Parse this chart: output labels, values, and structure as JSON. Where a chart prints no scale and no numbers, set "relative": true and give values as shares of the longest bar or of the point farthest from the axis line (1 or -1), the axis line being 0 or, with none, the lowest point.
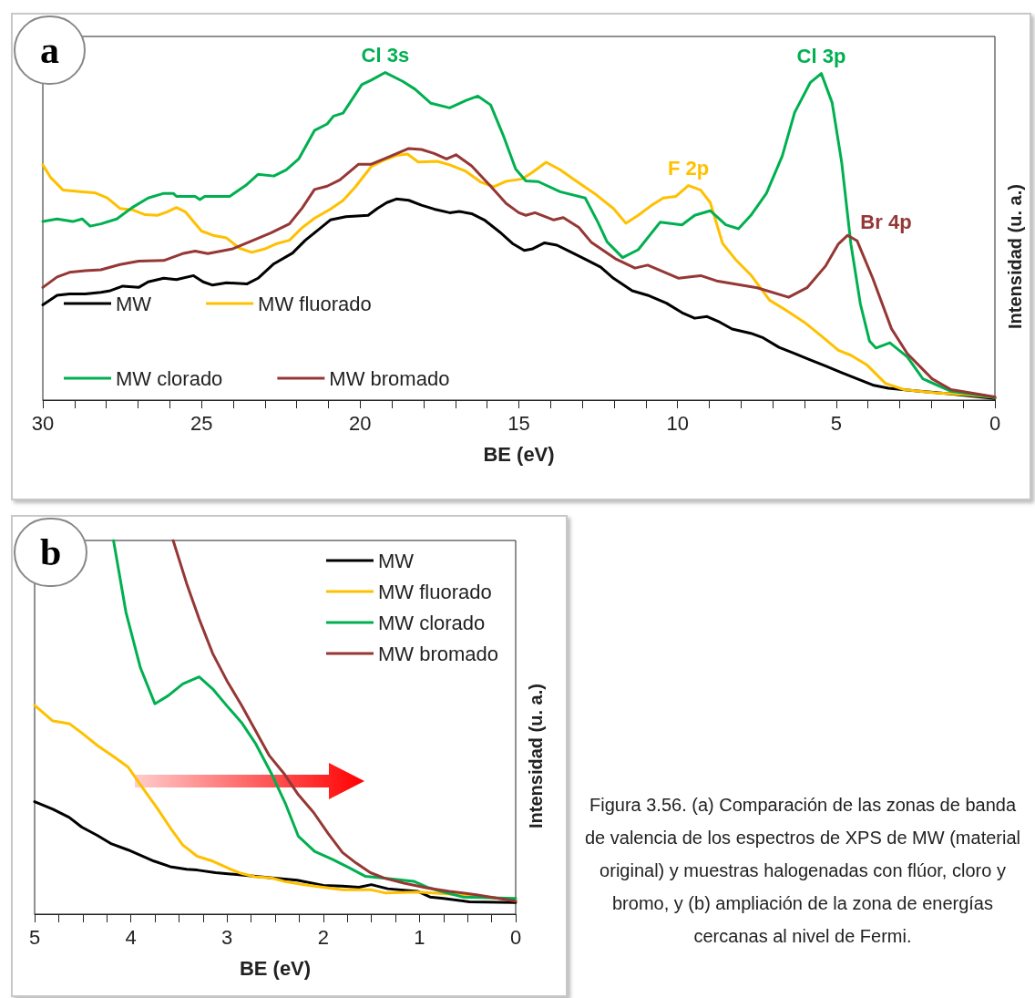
{
  "chart_data": [
    {
      "type": "line",
      "title": "a",
      "xlabel": "BE (eV)",
      "ylabel": "Intensidad (u. a.)",
      "relative": true,
      "legend": "bottom left",
      "grid": false,
      "marker": "none",
      "line_style": "solid",
      "xlim": [
        30,
        0
      ],
      "xticks": [
        30,
        {
          "value": 29,
          "label": null
        },
        {
          "value": 28,
          "label": null
        },
        {
          "value": 27,
          "label": null
        },
        {
          "value": 26,
          "label": null
        },
        25,
        {
          "value": 24,
          "label": null
        },
        {
          "value": 23,
          "label": null
        },
        {
          "value": 22,
          "label": null
        },
        {
          "value": 21,
          "label": null
        },
        20,
        {
          "value": 19,
          "label": null
        },
        {
          "value": 18,
          "label": null
        },
        {
          "value": 17,
          "label": null
        },
        {
          "value": 16,
          "label": null
        },
        15,
        {
          "value": 14,
          "label": null
        },
        {
          "value": 13,
          "label": null
        },
        {
          "value": 12,
          "label": null
        },
        {
          "value": 11,
          "label": null
        },
        10,
        {
          "value": 9,
          "label": null
        },
        {
          "value": 8,
          "label": null
        },
        {
          "value": 7,
          "label": null
        },
        {
          "value": 6,
          "label": null
        },
        5,
        {
          "value": 4,
          "label": null
        },
        {
          "value": 3,
          "label": null
        },
        {
          "value": 2,
          "label": null
        },
        {
          "value": 1,
          "label": null
        },
        0
      ],
      "annotations": [
        {
          "text": "Cl 3s",
          "x": 19.21,
          "y": 1
        },
        {
          "text": "Cl 3p",
          "x": 5.47,
          "y": 0.997
        },
        {
          "text": "F 2p",
          "x": 9.66,
          "y": 0.655
        },
        {
          "text": "Br 4p",
          "x": 4.64,
          "y": 0.503
        }
      ],
      "series": [
        {
          "name": "MW",
          "color": "#000000",
          "x": [
            30,
            29.55,
            29.16,
            28.66,
            28.17,
            27.87,
            27.48,
            26.98,
            26.68,
            26.19,
            25.79,
            25.25,
            24.95,
            24.65,
            24.21,
            23.56,
            23.22,
            22.72,
            22.13,
            21.73,
            21.24,
            20.94,
            20.45,
            19.75,
            19.46,
            19.16,
            18.86,
            18.47,
            18.07,
            17.67,
            17.18,
            16.88,
            16.49,
            16.09,
            15.59,
            15.2,
            14.83,
            14.59,
            14.19,
            13.8,
            13.4,
            12.91,
            12.42,
            12.02,
            11.43,
            10.94,
            10.35,
            9.86,
            9.46,
            9.07,
            8.67,
            8.28,
            7.69,
            7.3,
            6.8,
            6.31,
            5.82,
            5.33,
            4.83,
            4.34,
            3.85,
            3.35,
            2.37,
            1.38,
            0
          ],
          "values": [
            0.291,
            0.32,
            0.324,
            0.324,
            0.329,
            0.334,
            0.348,
            0.344,
            0.361,
            0.372,
            0.368,
            0.38,
            0.361,
            0.351,
            0.358,
            0.355,
            0.372,
            0.416,
            0.449,
            0.488,
            0.526,
            0.55,
            0.56,
            0.564,
            0.585,
            0.603,
            0.614,
            0.61,
            0.595,
            0.583,
            0.572,
            0.576,
            0.569,
            0.55,
            0.512,
            0.478,
            0.457,
            0.461,
            0.48,
            0.473,
            0.454,
            0.43,
            0.406,
            0.372,
            0.334,
            0.32,
            0.296,
            0.267,
            0.25,
            0.255,
            0.238,
            0.217,
            0.204,
            0.19,
            0.161,
            0.142,
            0.123,
            0.104,
            0.084,
            0.065,
            0.046,
            0.036,
            0.027,
            0.019,
            0.005
          ]
        },
        {
          "name": "MW fluorado",
          "color": "#ffc000",
          "x": [
            30,
            29.75,
            29.36,
            28.76,
            28.37,
            27.97,
            27.57,
            27.18,
            26.78,
            26.39,
            26.09,
            25.79,
            25.5,
            25,
            24.6,
            24.21,
            23.81,
            23.42,
            23.02,
            22.62,
            22.23,
            21.83,
            21.44,
            20.94,
            20.54,
            20.15,
            19.65,
            19.26,
            18.86,
            18.51,
            18.17,
            17.57,
            17.18,
            16.68,
            16.19,
            15.79,
            15.4,
            14.9,
            14.59,
            14.14,
            13.7,
            13.21,
            12.62,
            12.02,
            11.63,
            11.24,
            10.84,
            10.45,
            10.05,
            9.66,
            9.27,
            8.97,
            8.58,
            8.18,
            7.69,
            7.1,
            6.61,
            6.01,
            5.52,
            4.93,
            4.54,
            4.04,
            3.45,
            2.86,
            1.88,
            0.89,
            0
          ],
          "values": [
            0.718,
            0.679,
            0.641,
            0.636,
            0.633,
            0.617,
            0.585,
            0.581,
            0.566,
            0.564,
            0.574,
            0.588,
            0.574,
            0.516,
            0.502,
            0.495,
            0.464,
            0.451,
            0.461,
            0.478,
            0.488,
            0.526,
            0.555,
            0.583,
            0.609,
            0.651,
            0.713,
            0.732,
            0.747,
            0.751,
            0.727,
            0.729,
            0.718,
            0.699,
            0.665,
            0.651,
            0.668,
            0.675,
            0.694,
            0.726,
            0.703,
            0.67,
            0.631,
            0.585,
            0.54,
            0.564,
            0.593,
            0.617,
            0.622,
            0.655,
            0.641,
            0.603,
            0.478,
            0.43,
            0.382,
            0.305,
            0.276,
            0.238,
            0.2,
            0.152,
            0.137,
            0.108,
            0.051,
            0.032,
            0.022,
            0.017,
            0.008
          ]
        },
        {
          "name": "MW clorado",
          "color": "#00b050",
          "x": [
            30,
            29.55,
            29.06,
            28.76,
            28.51,
            28.17,
            27.67,
            27.18,
            26.68,
            26.19,
            25.89,
            25.79,
            25.2,
            25.05,
            24.9,
            24.11,
            23.61,
            23.22,
            22.72,
            22.33,
            21.93,
            21.44,
            21.04,
            20.84,
            20.54,
            19.95,
            19.65,
            19.21,
            18.66,
            18.27,
            17.77,
            17.18,
            16.68,
            16.29,
            15.89,
            15.5,
            15.1,
            14.78,
            14.39,
            13.7,
            12.91,
            12.52,
            12.22,
            11.73,
            11.24,
            10.55,
            9.86,
            9.46,
            8.97,
            8.48,
            8.08,
            7.69,
            7.2,
            6.7,
            6.31,
            5.82,
            5.47,
            5.13,
            4.83,
            4.54,
            4.24,
            3.95,
            3.75,
            3.31,
            2.76,
            2.27,
            1.38,
            0
          ],
          "values": [
            0.545,
            0.553,
            0.545,
            0.553,
            0.531,
            0.538,
            0.553,
            0.588,
            0.617,
            0.631,
            0.631,
            0.622,
            0.622,
            0.612,
            0.622,
            0.622,
            0.655,
            0.689,
            0.684,
            0.703,
            0.737,
            0.823,
            0.843,
            0.867,
            0.876,
            0.963,
            0.977,
            1,
            0.973,
            0.949,
            0.906,
            0.892,
            0.914,
            0.928,
            0.901,
            0.81,
            0.705,
            0.669,
            0.667,
            0.636,
            0.617,
            0.545,
            0.483,
            0.435,
            0.459,
            0.543,
            0.535,
            0.564,
            0.578,
            0.535,
            0.523,
            0.564,
            0.631,
            0.745,
            0.878,
            0.969,
            0.997,
            0.908,
            0.727,
            0.478,
            0.294,
            0.18,
            0.159,
            0.175,
            0.132,
            0.065,
            0.027,
            0.008
          ]
        },
        {
          "name": "MW bromado",
          "color": "#953735",
          "x": [
            30,
            29.55,
            29.16,
            28.66,
            28.17,
            27.57,
            26.98,
            26.19,
            25.6,
            25.2,
            24.8,
            24.01,
            23.42,
            22.82,
            22.23,
            21.83,
            21.44,
            21.04,
            20.64,
            20.05,
            19.65,
            19.06,
            18.47,
            18.07,
            17.67,
            17.28,
            16.98,
            16.49,
            15.89,
            15.4,
            15,
            14.78,
            14.49,
            13.9,
            13.6,
            13.11,
            12.71,
            11.93,
            11.34,
            10.94,
            9.96,
            9.27,
            8.77,
            7.49,
            6.5,
            5.92,
            5.33,
            4.93,
            4.64,
            4.34,
            3.85,
            3.26,
            2.76,
            1.98,
            1.38,
            0
          ],
          "values": [
            0.344,
            0.376,
            0.39,
            0.395,
            0.398,
            0.414,
            0.424,
            0.426,
            0.447,
            0.455,
            0.447,
            0.462,
            0.486,
            0.51,
            0.538,
            0.586,
            0.643,
            0.653,
            0.672,
            0.72,
            0.72,
            0.744,
            0.768,
            0.765,
            0.753,
            0.736,
            0.749,
            0.715,
            0.653,
            0.6,
            0.572,
            0.564,
            0.572,
            0.55,
            0.557,
            0.527,
            0.481,
            0.43,
            0.403,
            0.412,
            0.372,
            0.38,
            0.364,
            0.343,
            0.314,
            0.343,
            0.41,
            0.477,
            0.503,
            0.486,
            0.372,
            0.218,
            0.142,
            0.065,
            0.032,
            0.01
          ]
        }
      ]
    },
    {
      "type": "line",
      "title": "b",
      "xlabel": "BE (eV)",
      "ylabel": "Intensidad (u. a.)",
      "relative": true,
      "legend": "top right",
      "grid": false,
      "marker": "none",
      "line_style": "solid",
      "xlim": [
        5,
        0
      ],
      "xticks": [
        5,
        {
          "value": 4.75,
          "label": null
        },
        {
          "value": 4.5,
          "label": null
        },
        {
          "value": 4.25,
          "label": null
        },
        4,
        {
          "value": 3.75,
          "label": null
        },
        {
          "value": 3.5,
          "label": null
        },
        {
          "value": 3.25,
          "label": null
        },
        3,
        {
          "value": 2.75,
          "label": null
        },
        {
          "value": 2.5,
          "label": null
        },
        {
          "value": 2.25,
          "label": null
        },
        2,
        {
          "value": 1.75,
          "label": null
        },
        {
          "value": 1.5,
          "label": null
        },
        {
          "value": 1.25,
          "label": null
        },
        1,
        {
          "value": 0.75,
          "label": null
        },
        {
          "value": 0.5,
          "label": null
        },
        {
          "value": 0.25,
          "label": null
        },
        0
      ],
      "annotations": [
        "Figura 3.56. (a) Comparación de las zonas de banda de valencia de los espectros de XPS de MW (material original) y muestras halogenadas con flúor, cloro y bromo, y (b) ampliación de la zona de energías cercanas al nivel de Fermi."
      ],
      "series": [
        {
          "name": "MW",
          "color": "#000000",
          "x": [
            5,
            4.81,
            4.64,
            4.51,
            4.35,
            4.2,
            4.03,
            3.76,
            3.59,
            3.42,
            3.31,
            3.12,
            2.85,
            2.58,
            2.27,
            2,
            1.8,
            1.63,
            1.5,
            1.33,
            1.02,
            0.89,
            0.75,
            0.48,
            0
          ],
          "values": [
            0.301,
            0.281,
            0.259,
            0.233,
            0.211,
            0.188,
            0.172,
            0.142,
            0.127,
            0.12,
            0.118,
            0.111,
            0.105,
            0.098,
            0.091,
            0.077,
            0.075,
            0.072,
            0.079,
            0.068,
            0.061,
            0.046,
            0.042,
            0.033,
            0.031
          ]
        },
        {
          "name": "MW fluorado",
          "color": "#ffc000",
          "x": [
            5,
            4.81,
            4.64,
            4.51,
            4.34,
            4.17,
            4.03,
            3.9,
            3.73,
            3.59,
            3.46,
            3.31,
            3.15,
            2.98,
            2.85,
            2.71,
            2.54,
            2.41,
            2.21,
            2,
            1.8,
            1.5,
            1.36,
            1.02,
            0.75,
            0.41,
            0
          ],
          "values": [
            0.559,
            0.517,
            0.51,
            0.485,
            0.45,
            0.42,
            0.394,
            0.346,
            0.285,
            0.231,
            0.185,
            0.155,
            0.142,
            0.122,
            0.109,
            0.1,
            0.097,
            0.088,
            0.079,
            0.072,
            0.065,
            0.065,
            0.057,
            0.059,
            0.055,
            0.049,
            0.037
          ]
        },
        {
          "name": "MW clorado",
          "color": "#00b050",
          "x": [
            4.18,
            4.05,
            3.9,
            3.75,
            3.61,
            3.46,
            3.29,
            3.15,
            3,
            2.85,
            2.7,
            2.54,
            2.39,
            2.26,
            2.09,
            1.9,
            1.73,
            1.56,
            1.39,
            1.06,
            0.92,
            0.75,
            0.55,
            0
          ],
          "values": [
            1,
            0.807,
            0.659,
            0.563,
            0.585,
            0.616,
            0.635,
            0.603,
            0.557,
            0.513,
            0.455,
            0.377,
            0.294,
            0.209,
            0.168,
            0.146,
            0.124,
            0.101,
            0.097,
            0.088,
            0.072,
            0.059,
            0.046,
            0.042
          ]
        },
        {
          "name": "MW bromado",
          "color": "#953735",
          "x": [
            3.56,
            3.42,
            3.29,
            3.15,
            3,
            2.85,
            2.71,
            2.56,
            2.41,
            2.26,
            2.1,
            1.95,
            1.8,
            1.66,
            1.51,
            1.36,
            1.16,
            0.92,
            0.69,
            0.41,
            0
          ],
          "values": [
            1,
            0.885,
            0.79,
            0.698,
            0.624,
            0.559,
            0.494,
            0.424,
            0.377,
            0.32,
            0.272,
            0.216,
            0.165,
            0.137,
            0.111,
            0.096,
            0.083,
            0.07,
            0.061,
            0.052,
            0.035
          ]
        }
      ]
    }
  ]
}
